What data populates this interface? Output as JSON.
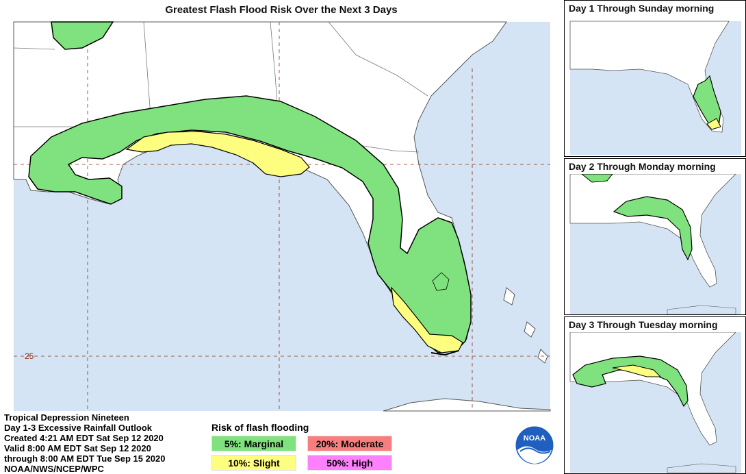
{
  "main_map": {
    "title": "Greatest Flash Flood Risk Over the Next 3 Days",
    "lat_label": "25"
  },
  "insets": [
    {
      "title": "Day 1 Through Sunday morning"
    },
    {
      "title": "Day 2 Through Monday morning"
    },
    {
      "title": "Day 3 Through Tuesday morning"
    }
  ],
  "info": {
    "line1": "Tropical Depression Nineteen",
    "line2": "Day 1-3 Excessive Rainfall Outlook",
    "line3": "Created 4:21 AM EDT Sat Sep 12 2020",
    "line4": "Valid 8:00 AM EDT Sat Sep 12 2020",
    "line5": "through 8:00 AM EDT Tue Sep 15 2020",
    "line6": "NOAA/NWS/NCEP/WPC"
  },
  "legend": {
    "title": "Risk of flash flooding",
    "items": [
      {
        "label": "5%: Marginal",
        "color": "#80e27e"
      },
      {
        "label": "20%: Moderate",
        "color": "#f77e7e"
      },
      {
        "label": "10%: Slight",
        "color": "#fdfd80"
      },
      {
        "label": "50%: High",
        "color": "#fd80fd"
      }
    ]
  },
  "logo": {
    "text": "NOAA"
  },
  "colors": {
    "water": "#d4e4f4",
    "land": "#ffffff",
    "marginal": "#80e27e",
    "slight": "#fdfd80",
    "gridline": "#8b2e12"
  }
}
